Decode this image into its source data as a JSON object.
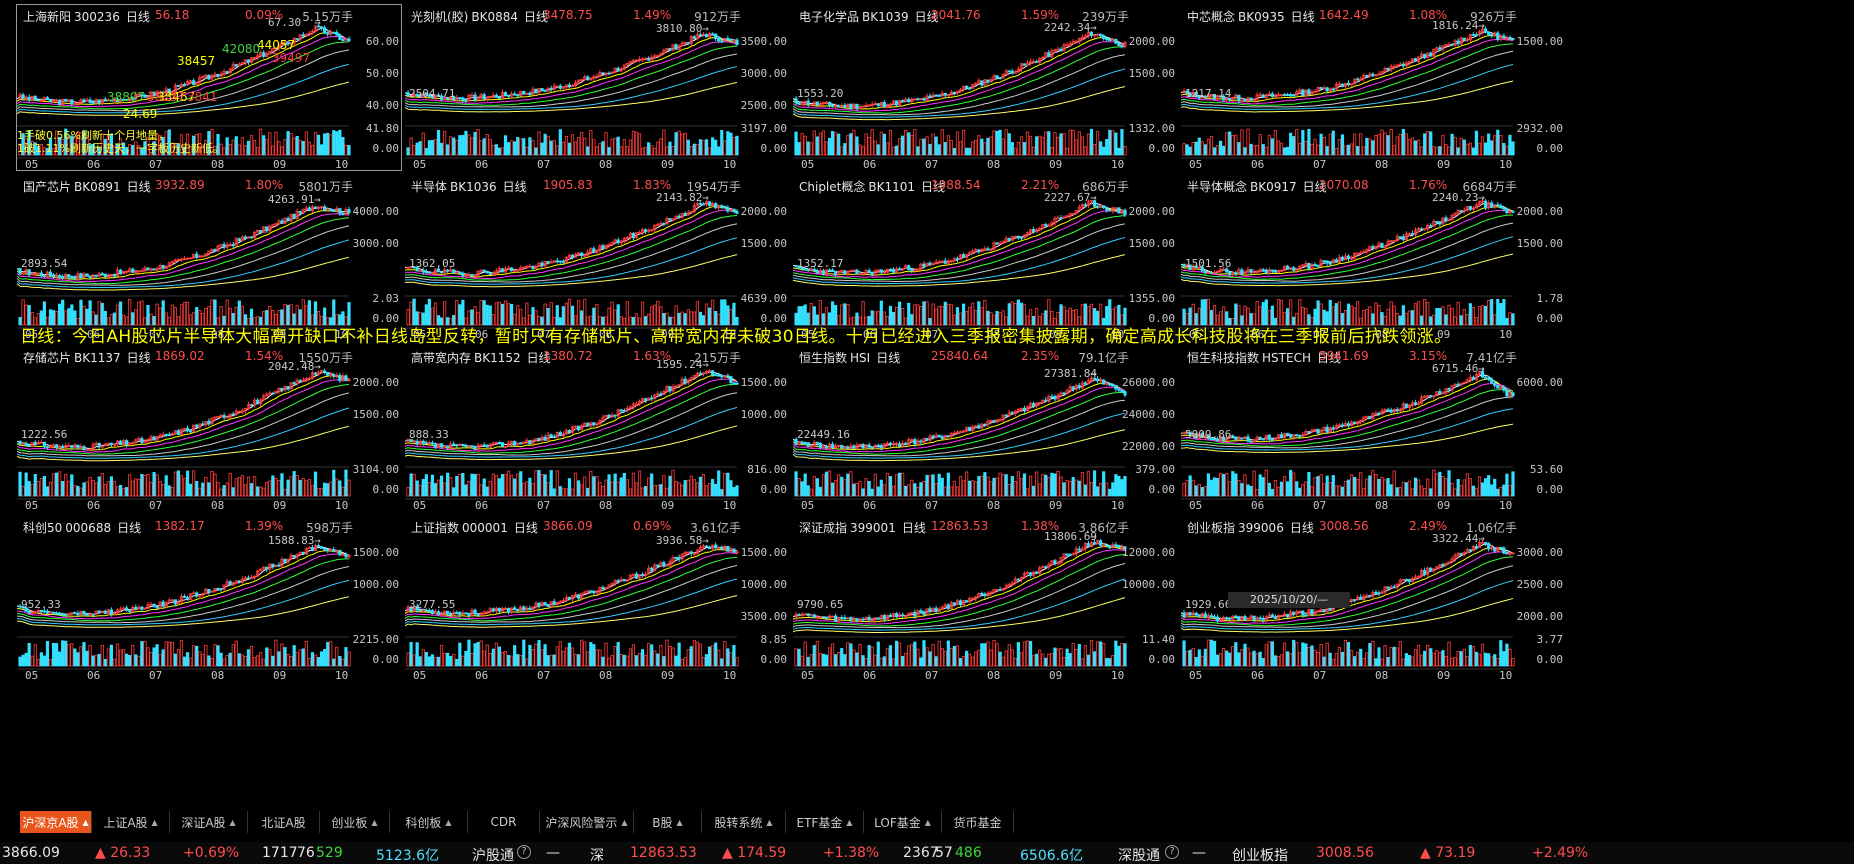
{
  "banner": "日线：今日AH股芯片半导体大幅高开缺口不补日线岛型反转，暂时只有存储芯片、高带宽内存未破30日线。十月已经进入三季报密集披露期，确定高成长科技股将在三季报前后抗跌领涨。",
  "date_tip": "2025/10/20/—",
  "months": [
    "05",
    "06",
    "07",
    "08",
    "09",
    "10"
  ],
  "panels": [
    {
      "name": "上海新阳",
      "code": "300236",
      "period": "日线",
      "price": "56.18",
      "pct": "0.09%",
      "vol": "5.15万手",
      "peak": "67.30",
      "low": "",
      "y_labels": [
        "60.00",
        "50.00",
        "40.00"
      ],
      "vol_labels": [
        "41.80",
        "0.00"
      ],
      "start": 0.26,
      "end": 0.82,
      "pk": 0.95,
      "seed": 3
    },
    {
      "name": "光刻机(胶)",
      "code": "BK0884",
      "period": "日线",
      "price": "3478.75",
      "pct": "1.49%",
      "vol": "912万手",
      "peak": "3810.80",
      "low": "2504.71",
      "y_labels": [
        "3500.00",
        "3000.00",
        "2500.00"
      ],
      "vol_labels": [
        "3197.00",
        "0.00"
      ],
      "start": 0.3,
      "end": 0.8,
      "pk": 0.89,
      "seed": 7
    },
    {
      "name": "电子化学品",
      "code": "BK1039",
      "period": "日线",
      "price": "2041.76",
      "pct": "1.59%",
      "vol": "239万手",
      "peak": "2242.34",
      "low": "1553.20",
      "y_labels": [
        "2000.00",
        "1500.00"
      ],
      "vol_labels": [
        "1332.00",
        "0.00"
      ],
      "start": 0.22,
      "end": 0.78,
      "pk": 0.9,
      "seed": 11
    },
    {
      "name": "中芯概念",
      "code": "BK0935",
      "period": "日线",
      "price": "1642.49",
      "pct": "1.08%",
      "vol": "926万手",
      "peak": "1816.24",
      "low": "1217.14",
      "y_labels": [
        "1500.00"
      ],
      "vol_labels": [
        "2932.00",
        "0.00"
      ],
      "start": 0.3,
      "end": 0.82,
      "pk": 0.92,
      "seed": 13
    },
    {
      "name": "国产芯片",
      "code": "BK0891",
      "period": "日线",
      "price": "3932.89",
      "pct": "1.80%",
      "vol": "5801万手",
      "peak": "4263.91",
      "low": "2893.54",
      "y_labels": [
        "4000.00",
        "3000.00"
      ],
      "vol_labels": [
        "2.03",
        "0.00"
      ],
      "start": 0.22,
      "end": 0.8,
      "pk": 0.88,
      "seed": 17
    },
    {
      "name": "半导体",
      "code": "BK1036",
      "period": "日线",
      "price": "1905.83",
      "pct": "1.83%",
      "vol": "1954万手",
      "peak": "2143.82",
      "low": "1362.05",
      "y_labels": [
        "2000.00",
        "1500.00"
      ],
      "vol_labels": [
        "4639.00",
        "0.00"
      ],
      "start": 0.25,
      "end": 0.8,
      "pk": 0.9,
      "seed": 19
    },
    {
      "name": "Chiplet概念",
      "code": "BK1101",
      "period": "日线",
      "price": "1988.54",
      "pct": "2.21%",
      "vol": "686万手",
      "peak": "2227.67",
      "low": "1352.17",
      "y_labels": [
        "2000.00",
        "1500.00"
      ],
      "vol_labels": [
        "1355.00",
        "0.00"
      ],
      "start": 0.25,
      "end": 0.8,
      "pk": 0.9,
      "seed": 23
    },
    {
      "name": "半导体概念",
      "code": "BK0917",
      "period": "日线",
      "price": "2070.08",
      "pct": "1.76%",
      "vol": "6684万手",
      "peak": "2240.23",
      "low": "1501.56",
      "y_labels": [
        "2000.00",
        "1500.00"
      ],
      "vol_labels": [
        "1.78",
        "0.00"
      ],
      "start": 0.26,
      "end": 0.8,
      "pk": 0.9,
      "seed": 29
    },
    {
      "name": "存储芯片",
      "code": "BK1137",
      "period": "日线",
      "price": "1869.02",
      "pct": "1.54%",
      "vol": "1550万手",
      "peak": "2042.48",
      "low": "1222.56",
      "y_labels": [
        "2000.00",
        "1500.00"
      ],
      "vol_labels": [
        "3104.00",
        "0.00"
      ],
      "start": 0.22,
      "end": 0.84,
      "pk": 0.92,
      "seed": 31
    },
    {
      "name": "高带宽内存",
      "code": "BK1152",
      "period": "日线",
      "price": "1380.72",
      "pct": "1.63%",
      "vol": "215万手",
      "peak": "1595.24",
      "low": "888.33",
      "y_labels": [
        "1500.00",
        "1000.00"
      ],
      "vol_labels": [
        "816.00",
        "0.00"
      ],
      "start": 0.22,
      "end": 0.82,
      "pk": 0.94,
      "seed": 37
    },
    {
      "name": "恒生指数",
      "code": "HSI",
      "period": "日线",
      "price": "25840.64",
      "pct": "2.35%",
      "vol": "79.1亿手",
      "peak": "27381.84",
      "low": "22449.16",
      "y_labels": [
        "26000.00",
        "24000.00",
        "22000.00"
      ],
      "vol_labels": [
        "379.00",
        "0.00"
      ],
      "start": 0.22,
      "end": 0.72,
      "pk": 0.85,
      "seed": 41
    },
    {
      "name": "恒生科技指数",
      "code": "HSTECH",
      "period": "日线",
      "price": "5941.69",
      "pct": "3.15%",
      "vol": "7.41亿手",
      "peak": "6715.46",
      "low": "5009.86",
      "y_labels": [
        "6000.00"
      ],
      "vol_labels": [
        "53.60",
        "0.00"
      ],
      "start": 0.3,
      "end": 0.66,
      "pk": 0.9,
      "seed": 43
    },
    {
      "name": "科创50",
      "code": "000688",
      "period": "日线",
      "price": "1382.17",
      "pct": "1.39%",
      "vol": "598万手",
      "peak": "1588.83",
      "low": "952.33",
      "y_labels": [
        "1500.00",
        "1000.00"
      ],
      "vol_labels": [
        "2215.00",
        "0.00"
      ],
      "start": 0.25,
      "end": 0.78,
      "pk": 0.88,
      "seed": 47
    },
    {
      "name": "上证指数",
      "code": "000001",
      "period": "日线",
      "price": "3866.09",
      "pct": "0.69%",
      "vol": "3.61亿手",
      "peak": "3936.58",
      "low": "3277.55",
      "y_labels": [
        "1500.00",
        "1000.00",
        "3500.00"
      ],
      "vol_labels": [
        "8.85",
        "0.00"
      ],
      "start": 0.26,
      "end": 0.84,
      "pk": 0.88,
      "seed": 53
    },
    {
      "name": "深证成指",
      "code": "399001",
      "period": "日线",
      "price": "12863.53",
      "pct": "1.38%",
      "vol": "3.86亿手",
      "peak": "13806.69",
      "low": "9790.65",
      "y_labels": [
        "12000.00",
        "10000.00"
      ],
      "vol_labels": [
        "11.40",
        "0.00"
      ],
      "start": 0.2,
      "end": 0.84,
      "pk": 0.92,
      "seed": 59
    },
    {
      "name": "创业板指",
      "code": "399006",
      "period": "日线",
      "price": "3008.56",
      "pct": "2.49%",
      "vol": "1.06亿手",
      "peak": "3322.44",
      "low": "1929.66",
      "y_labels": [
        "3000.00",
        "2500.00",
        "2000.00"
      ],
      "vol_labels": [
        "3.77",
        "0.00"
      ],
      "start": 0.2,
      "end": 0.8,
      "pk": 0.9,
      "seed": 61
    }
  ],
  "p0_notes": {
    "yellow": [
      "44057",
      "38457",
      "38467"
    ],
    "green": [
      "42080",
      "38807"
    ],
    "red": [
      "39497",
      "38237",
      "3841"
    ],
    "small1": "1手破0.56%刷新十个月地量，",
    "small2": "1破1.11%刷新历史天，一字板历史新低。",
    "low_tag": "24.69"
  },
  "tabs": [
    {
      "label": "沪深京A股",
      "arrow": "▲",
      "active": true
    },
    {
      "label": "上证A股",
      "arrow": "▲",
      "active": false
    },
    {
      "label": "深证A股",
      "arrow": "▲",
      "active": false
    },
    {
      "label": "北证A股",
      "arrow": "",
      "active": false
    },
    {
      "label": "创业板",
      "arrow": "▲",
      "active": false
    },
    {
      "label": "科创板",
      "arrow": "▲",
      "active": false
    },
    {
      "label": "CDR",
      "arrow": "",
      "active": false
    },
    {
      "label": "沪深风险警示",
      "arrow": "▲",
      "active": false
    },
    {
      "label": "B股",
      "arrow": "▲",
      "active": false
    },
    {
      "label": "股转系统",
      "arrow": "▲",
      "active": false
    },
    {
      "label": "ETF基金",
      "arrow": "▲",
      "active": false
    },
    {
      "label": "LOF基金",
      "arrow": "▲",
      "active": false
    },
    {
      "label": "货币基金",
      "arrow": "",
      "active": false
    }
  ],
  "status": {
    "sh_price": "3866.09",
    "sh_chg": "▲ 26.33",
    "sh_pct": "+0.69%",
    "sh_up": "1717",
    "sh_flat": "76",
    "sh_down": "529",
    "sh_amt": "5123.6亿",
    "sh_link": "沪股通",
    "sh_link_val": "—",
    "sz_label": "深",
    "sz_price": "12863.53",
    "sz_chg": "▲ 174.59",
    "sz_pct": "+1.38%",
    "sz_up": "2367",
    "sz_flat": "57",
    "sz_down": "486",
    "sz_amt": "6506.6亿",
    "sz_link": "深股通",
    "sz_link_val": "—",
    "cy_label": "创业板指",
    "cy_price": "3008.56",
    "cy_chg": "▲ 73.19",
    "cy_pct": "+2.49%",
    "q": "?"
  }
}
